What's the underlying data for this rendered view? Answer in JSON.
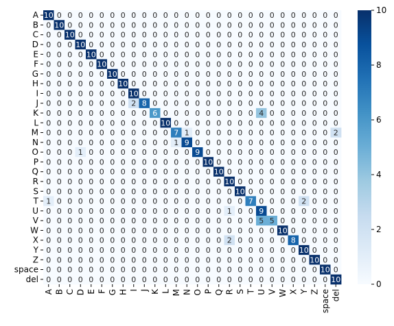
{
  "chart_data": {
    "type": "heatmap",
    "title": "",
    "xlabel": "",
    "ylabel": "",
    "labels": [
      "A",
      "B",
      "C",
      "D",
      "E",
      "F",
      "G",
      "H",
      "I",
      "J",
      "K",
      "L",
      "M",
      "N",
      "O",
      "P",
      "Q",
      "R",
      "S",
      "T",
      "U",
      "V",
      "W",
      "X",
      "Y",
      "Z",
      "space",
      "del"
    ],
    "matrix": [
      [
        10,
        0,
        0,
        0,
        0,
        0,
        0,
        0,
        0,
        0,
        0,
        0,
        0,
        0,
        0,
        0,
        0,
        0,
        0,
        0,
        0,
        0,
        0,
        0,
        0,
        0,
        0,
        0
      ],
      [
        0,
        10,
        0,
        0,
        0,
        0,
        0,
        0,
        0,
        0,
        0,
        0,
        0,
        0,
        0,
        0,
        0,
        0,
        0,
        0,
        0,
        0,
        0,
        0,
        0,
        0,
        0,
        0
      ],
      [
        0,
        0,
        10,
        0,
        0,
        0,
        0,
        0,
        0,
        0,
        0,
        0,
        0,
        0,
        0,
        0,
        0,
        0,
        0,
        0,
        0,
        0,
        0,
        0,
        0,
        0,
        0,
        0
      ],
      [
        0,
        0,
        0,
        10,
        0,
        0,
        0,
        0,
        0,
        0,
        0,
        0,
        0,
        0,
        0,
        0,
        0,
        0,
        0,
        0,
        0,
        0,
        0,
        0,
        0,
        0,
        0,
        0
      ],
      [
        0,
        0,
        0,
        0,
        10,
        0,
        0,
        0,
        0,
        0,
        0,
        0,
        0,
        0,
        0,
        0,
        0,
        0,
        0,
        0,
        0,
        0,
        0,
        0,
        0,
        0,
        0,
        0
      ],
      [
        0,
        0,
        0,
        0,
        0,
        10,
        0,
        0,
        0,
        0,
        0,
        0,
        0,
        0,
        0,
        0,
        0,
        0,
        0,
        0,
        0,
        0,
        0,
        0,
        0,
        0,
        0,
        0
      ],
      [
        0,
        0,
        0,
        0,
        0,
        0,
        10,
        0,
        0,
        0,
        0,
        0,
        0,
        0,
        0,
        0,
        0,
        0,
        0,
        0,
        0,
        0,
        0,
        0,
        0,
        0,
        0,
        0
      ],
      [
        0,
        0,
        0,
        0,
        0,
        0,
        0,
        10,
        0,
        0,
        0,
        0,
        0,
        0,
        0,
        0,
        0,
        0,
        0,
        0,
        0,
        0,
        0,
        0,
        0,
        0,
        0,
        0
      ],
      [
        0,
        0,
        0,
        0,
        0,
        0,
        0,
        0,
        10,
        0,
        0,
        0,
        0,
        0,
        0,
        0,
        0,
        0,
        0,
        0,
        0,
        0,
        0,
        0,
        0,
        0,
        0,
        0
      ],
      [
        0,
        0,
        0,
        0,
        0,
        0,
        0,
        0,
        2,
        8,
        0,
        0,
        0,
        0,
        0,
        0,
        0,
        0,
        0,
        0,
        0,
        0,
        0,
        0,
        0,
        0,
        0,
        0
      ],
      [
        0,
        0,
        0,
        0,
        0,
        0,
        0,
        0,
        0,
        0,
        6,
        0,
        0,
        0,
        0,
        0,
        0,
        0,
        0,
        0,
        4,
        0,
        0,
        0,
        0,
        0,
        0,
        0
      ],
      [
        0,
        0,
        0,
        0,
        0,
        0,
        0,
        0,
        0,
        0,
        0,
        10,
        0,
        0,
        0,
        0,
        0,
        0,
        0,
        0,
        0,
        0,
        0,
        0,
        0,
        0,
        0,
        0
      ],
      [
        0,
        0,
        0,
        0,
        0,
        0,
        0,
        0,
        0,
        0,
        0,
        0,
        7,
        1,
        0,
        0,
        0,
        0,
        0,
        0,
        0,
        0,
        0,
        0,
        0,
        0,
        0,
        2
      ],
      [
        0,
        0,
        0,
        0,
        0,
        0,
        0,
        0,
        0,
        0,
        0,
        0,
        1,
        9,
        0,
        0,
        0,
        0,
        0,
        0,
        0,
        0,
        0,
        0,
        0,
        0,
        0,
        0
      ],
      [
        0,
        0,
        0,
        1,
        0,
        0,
        0,
        0,
        0,
        0,
        0,
        0,
        0,
        0,
        9,
        0,
        0,
        0,
        0,
        0,
        0,
        0,
        0,
        0,
        0,
        0,
        0,
        0
      ],
      [
        0,
        0,
        0,
        0,
        0,
        0,
        0,
        0,
        0,
        0,
        0,
        0,
        0,
        0,
        0,
        10,
        0,
        0,
        0,
        0,
        0,
        0,
        0,
        0,
        0,
        0,
        0,
        0
      ],
      [
        0,
        0,
        0,
        0,
        0,
        0,
        0,
        0,
        0,
        0,
        0,
        0,
        0,
        0,
        0,
        0,
        10,
        0,
        0,
        0,
        0,
        0,
        0,
        0,
        0,
        0,
        0,
        0
      ],
      [
        0,
        0,
        0,
        0,
        0,
        0,
        0,
        0,
        0,
        0,
        0,
        0,
        0,
        0,
        0,
        0,
        0,
        10,
        0,
        0,
        0,
        0,
        0,
        0,
        0,
        0,
        0,
        0
      ],
      [
        0,
        0,
        0,
        0,
        0,
        0,
        0,
        0,
        0,
        0,
        0,
        0,
        0,
        0,
        0,
        0,
        0,
        0,
        10,
        0,
        0,
        0,
        0,
        0,
        0,
        0,
        0,
        0
      ],
      [
        1,
        0,
        0,
        0,
        0,
        0,
        0,
        0,
        0,
        0,
        0,
        0,
        0,
        0,
        0,
        0,
        0,
        0,
        0,
        7,
        0,
        0,
        0,
        0,
        2,
        0,
        0,
        0
      ],
      [
        0,
        0,
        0,
        0,
        0,
        0,
        0,
        0,
        0,
        0,
        0,
        0,
        0,
        0,
        0,
        0,
        0,
        1,
        0,
        0,
        9,
        0,
        0,
        0,
        0,
        0,
        0,
        0
      ],
      [
        0,
        0,
        0,
        0,
        0,
        0,
        0,
        0,
        0,
        0,
        0,
        0,
        0,
        0,
        0,
        0,
        0,
        0,
        0,
        0,
        5,
        5,
        0,
        0,
        0,
        0,
        0,
        0
      ],
      [
        0,
        0,
        0,
        0,
        0,
        0,
        0,
        0,
        0,
        0,
        0,
        0,
        0,
        0,
        0,
        0,
        0,
        0,
        0,
        0,
        0,
        0,
        10,
        0,
        0,
        0,
        0,
        0
      ],
      [
        0,
        0,
        0,
        0,
        0,
        0,
        0,
        0,
        0,
        0,
        0,
        0,
        0,
        0,
        0,
        0,
        0,
        2,
        0,
        0,
        0,
        0,
        0,
        8,
        0,
        0,
        0,
        0
      ],
      [
        0,
        0,
        0,
        0,
        0,
        0,
        0,
        0,
        0,
        0,
        0,
        0,
        0,
        0,
        0,
        0,
        0,
        0,
        0,
        0,
        0,
        0,
        0,
        0,
        10,
        0,
        0,
        0
      ],
      [
        0,
        0,
        0,
        0,
        0,
        0,
        0,
        0,
        0,
        0,
        0,
        0,
        0,
        0,
        0,
        0,
        0,
        0,
        0,
        0,
        0,
        0,
        0,
        0,
        0,
        10,
        0,
        0
      ],
      [
        0,
        0,
        0,
        0,
        0,
        0,
        0,
        0,
        0,
        0,
        0,
        0,
        0,
        0,
        0,
        0,
        0,
        0,
        0,
        0,
        0,
        0,
        0,
        0,
        0,
        0,
        10,
        0
      ],
      [
        0,
        0,
        0,
        0,
        0,
        0,
        0,
        0,
        0,
        0,
        0,
        0,
        0,
        0,
        0,
        0,
        0,
        0,
        0,
        0,
        0,
        0,
        0,
        0,
        0,
        0,
        0,
        10
      ]
    ],
    "value_range": [
      0,
      10
    ],
    "colormap": "Blues",
    "colorbar": {
      "ticks": [
        0,
        2,
        4,
        6,
        8,
        10
      ]
    },
    "annotations": true,
    "grid": false
  }
}
